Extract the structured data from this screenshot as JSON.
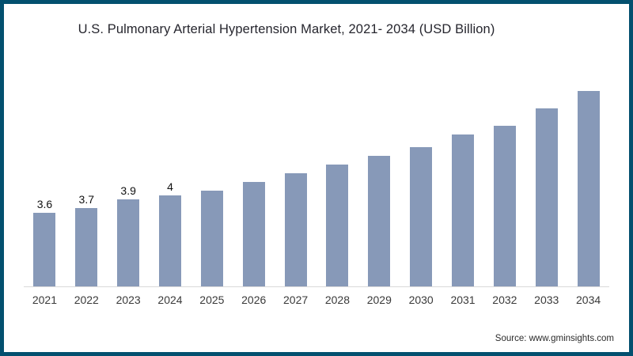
{
  "header": {
    "title": "U.S. Pulmonary Arterial Hypertension Market, 2021- 2034 (USD Billion)"
  },
  "footer": {
    "source": "Source: www.gminsights.com"
  },
  "colors": {
    "frame_border": "#03506f",
    "bar": "#8799b8",
    "axis_line": "#d9d9d9",
    "title_text": "#26262e",
    "tick_text": "#3a3a3a"
  },
  "chart_data": {
    "type": "bar",
    "title": "U.S. Pulmonary Arterial Hypertension Market, 2021- 2034 (USD Billion)",
    "unit": "USD Billion",
    "categories": [
      "2021",
      "2022",
      "2023",
      "2024",
      "2025",
      "2026",
      "2027",
      "2028",
      "2029",
      "2030",
      "2031",
      "2032",
      "2033",
      "2034"
    ],
    "values": [
      3.6,
      3.7,
      3.9,
      4,
      4.1,
      4.3,
      4.5,
      4.7,
      4.9,
      5.1,
      5.4,
      5.6,
      6.0,
      6.4
    ],
    "data_labels": [
      "3.6",
      "3.7",
      "3.9",
      "4",
      "",
      "",
      "",
      "",
      "",
      "",
      "",
      "",
      "",
      ""
    ],
    "xlabel": "",
    "ylabel": "",
    "axis_min": 1.9,
    "ylim": [
      1.9,
      6.6
    ],
    "grid": false,
    "legend": false,
    "note": "Only 2021-2024 bars carry data labels; 2025-2034 values estimated from bar heights"
  }
}
